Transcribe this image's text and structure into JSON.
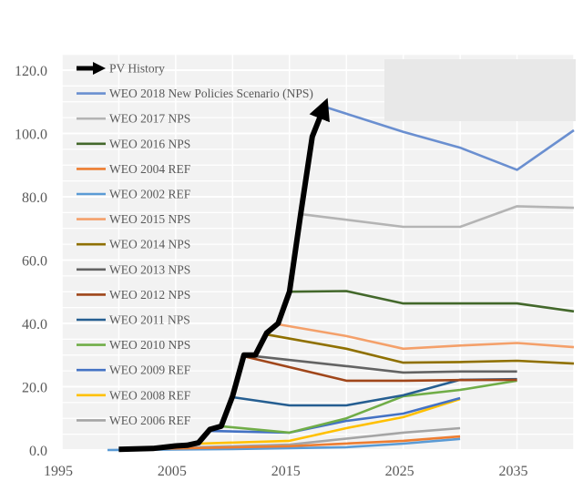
{
  "chart_data": {
    "type": "line",
    "title": "",
    "xlabel": "",
    "ylabel": "",
    "xlim": [
      1995,
      2040
    ],
    "ylim": [
      0,
      125
    ],
    "x_ticks": [
      1995,
      2005,
      2015,
      2025,
      2035
    ],
    "y_ticks": [
      "0.0",
      "20.0",
      "40.0",
      "60.0",
      "80.0",
      "100.0",
      "120.0"
    ],
    "grid": true,
    "legend_placement": "top-left",
    "series": [
      {
        "name": "PV History",
        "color": "#000000",
        "arrow": true,
        "x": [
          2000,
          2003,
          2005,
          2006,
          2007,
          2008,
          2009,
          2010,
          2011,
          2012,
          2013,
          2014,
          2015,
          2016,
          2017,
          2018
        ],
        "y": [
          0.2,
          0.5,
          1.3,
          1.5,
          2.3,
          6.5,
          7.5,
          17,
          30,
          30,
          37,
          40,
          50,
          75,
          99,
          108
        ]
      },
      {
        "name": "WEO 2018 New Policies Scenario (NPS)",
        "color": "#6a8fd0",
        "x": [
          2018,
          2025,
          2030,
          2035,
          2040
        ],
        "y": [
          108.5,
          100.5,
          95.5,
          88.5,
          101
        ]
      },
      {
        "name": "WEO 2017 NPS",
        "color": "#b4b4b4",
        "x": [
          2016,
          2025,
          2030,
          2035,
          2040
        ],
        "y": [
          74.5,
          70.5,
          70.5,
          77,
          76.5
        ]
      },
      {
        "name": "WEO 2016 NPS",
        "color": "#43682b",
        "x": [
          2015,
          2020,
          2025,
          2030,
          2035,
          2040
        ],
        "y": [
          50,
          50.2,
          46.3,
          46.3,
          46.3,
          43.8
        ]
      },
      {
        "name": "WEO 2004 REF",
        "color": "#ed7d31",
        "x": [
          2002,
          2015,
          2025,
          2030
        ],
        "y": [
          0.3,
          1.2,
          2.9,
          4.3
        ]
      },
      {
        "name": "WEO 2002 REF",
        "color": "#5b9bd5",
        "x": [
          1999,
          2010,
          2020,
          2025,
          2030
        ],
        "y": [
          0,
          0.3,
          0.9,
          2,
          3.5
        ]
      },
      {
        "name": "WEO 2015 NPS",
        "color": "#f4a06a",
        "x": [
          2014,
          2020,
          2025,
          2030,
          2035,
          2040
        ],
        "y": [
          39.7,
          36,
          32,
          33,
          33.8,
          32.5
        ]
      },
      {
        "name": "WEO 2014 NPS",
        "color": "#8f7000",
        "x": [
          2013,
          2020,
          2025,
          2030,
          2035,
          2040
        ],
        "y": [
          36.5,
          32,
          27.6,
          27.8,
          28.2,
          27.3
        ]
      },
      {
        "name": "WEO 2013 NPS",
        "color": "#636363",
        "x": [
          2012,
          2020,
          2025,
          2030,
          2035
        ],
        "y": [
          29.6,
          26.5,
          24.5,
          24.8,
          24.8
        ]
      },
      {
        "name": "WEO 2012 NPS",
        "color": "#a0461a",
        "x": [
          2011,
          2020,
          2025,
          2030,
          2035
        ],
        "y": [
          29.6,
          21.9,
          21.9,
          22.1,
          22.2
        ]
      },
      {
        "name": "WEO 2011 NPS",
        "color": "#255e91",
        "x": [
          2010,
          2015,
          2020,
          2025,
          2030,
          2035
        ],
        "y": [
          16.7,
          14.1,
          14.1,
          17.3,
          22.2,
          22.4
        ]
      },
      {
        "name": "WEO 2010 NPS",
        "color": "#70ad47",
        "x": [
          2009,
          2015,
          2020,
          2025,
          2030,
          2035
        ],
        "y": [
          7.5,
          5.5,
          10,
          17,
          19,
          21.9
        ]
      },
      {
        "name": "WEO 2009 REF",
        "color": "#4472c4",
        "x": [
          2008,
          2015,
          2020,
          2025,
          2030
        ],
        "y": [
          6,
          5.5,
          9.2,
          11.5,
          16.4
        ]
      },
      {
        "name": "WEO 2008 REF",
        "color": "#ffc000",
        "x": [
          2007,
          2015,
          2020,
          2025,
          2030
        ],
        "y": [
          2,
          2.9,
          6.9,
          10.4,
          16.1
        ]
      },
      {
        "name": "WEO 2006 REF",
        "color": "#a5a5a5",
        "x": [
          2004,
          2015,
          2025,
          2030
        ],
        "y": [
          0.6,
          1.7,
          5.5,
          6.9
        ]
      }
    ]
  }
}
